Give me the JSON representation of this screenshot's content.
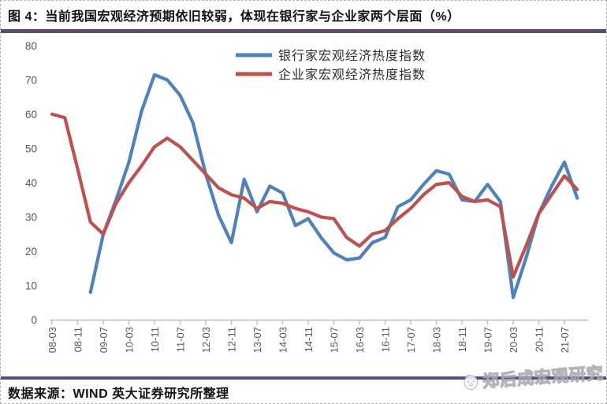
{
  "header": {
    "title": "图 4：当前我国宏观经济预期依旧较弱，体现在银行家与企业家两个层面（%）"
  },
  "footer": {
    "source": "数据来源：WIND  英大证券研究所整理",
    "watermark": "郑后成宏观研究"
  },
  "colors": {
    "banker": "#4F81BD",
    "entrepreneur": "#C0504D",
    "rule": "#5C4A7C",
    "axis": "#BFBFBF",
    "tick_label": "#595959",
    "legend_text": "#2b2b2b"
  },
  "chart_data": {
    "type": "line",
    "title": "",
    "xlabel": "",
    "ylabel": "",
    "ylim": [
      0,
      80
    ],
    "y_ticks": [
      0,
      10,
      20,
      30,
      40,
      50,
      60,
      70,
      80
    ],
    "grid": false,
    "legend_position": "top-center",
    "categories": [
      "08-03",
      "08-07",
      "08-11",
      "09-03",
      "09-07",
      "09-11",
      "10-03",
      "10-07",
      "10-11",
      "11-03",
      "11-07",
      "11-11",
      "12-03",
      "12-07",
      "12-11",
      "13-03",
      "13-07",
      "13-11",
      "14-03",
      "14-07",
      "14-11",
      "15-03",
      "15-07",
      "15-11",
      "16-03",
      "16-07",
      "16-11",
      "17-03",
      "17-07",
      "17-11",
      "18-03",
      "18-07",
      "18-11",
      "19-03",
      "19-07",
      "19-11",
      "20-03",
      "20-07",
      "20-11",
      "21-03",
      "21-07",
      "21-11"
    ],
    "x_tick_labels": [
      "08-03",
      "08-11",
      "09-07",
      "10-03",
      "10-11",
      "11-07",
      "12-03",
      "12-11",
      "13-07",
      "14-03",
      "14-11",
      "15-07",
      "16-03",
      "16-11",
      "17-07",
      "18-03",
      "18-11",
      "19-07",
      "20-03",
      "20-11",
      "21-07"
    ],
    "series": [
      {
        "name": "银行家宏观经济热度指数",
        "color_key": "banker",
        "values": [
          null,
          null,
          null,
          8,
          25,
          35,
          46,
          61,
          71.5,
          70,
          65.5,
          57.5,
          42.5,
          30.5,
          22.5,
          41,
          31.5,
          39,
          37,
          27.5,
          29.5,
          24,
          19.5,
          17.5,
          18,
          22.5,
          24,
          33,
          35,
          39.5,
          43.5,
          42.5,
          35,
          34.5,
          39.5,
          34.5,
          6.5,
          18,
          31,
          39,
          46,
          35.5
        ]
      },
      {
        "name": "企业家宏观经济热度指数",
        "color_key": "entrepreneur",
        "values": [
          60,
          59,
          44,
          28.5,
          25,
          34,
          40,
          45,
          50.5,
          53,
          50.5,
          46.5,
          42.5,
          38.5,
          36.5,
          35.5,
          32.5,
          34.5,
          34,
          32.5,
          31.5,
          30,
          29.5,
          24,
          21.5,
          25,
          26,
          29.5,
          32.5,
          36.5,
          39.5,
          40,
          36,
          34.5,
          35,
          33,
          12.5,
          21.5,
          31,
          36.5,
          42,
          38
        ]
      }
    ]
  }
}
